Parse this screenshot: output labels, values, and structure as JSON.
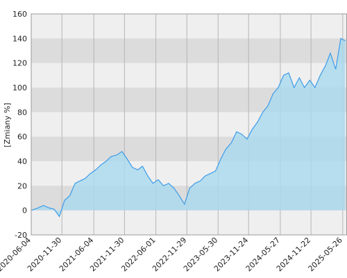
{
  "chart_data": {
    "type": "area",
    "y_label": "[Zmiany %]",
    "x": [
      "2020-06-04",
      "2020-07-15",
      "2020-08-15",
      "2020-09-15",
      "2020-10-15",
      "2020-11-15",
      "2020-12-15",
      "2021-01-15",
      "2021-02-15",
      "2021-03-15",
      "2021-04-15",
      "2021-05-15",
      "2021-06-15",
      "2021-07-15",
      "2021-08-15",
      "2021-09-15",
      "2021-10-15",
      "2021-11-15",
      "2021-12-15",
      "2022-01-15",
      "2022-02-15",
      "2022-03-15",
      "2022-04-15",
      "2022-05-15",
      "2022-06-15",
      "2022-07-15",
      "2022-08-15",
      "2022-09-15",
      "2022-10-15",
      "2022-11-15",
      "2022-12-15",
      "2023-01-15",
      "2023-02-15",
      "2023-03-15",
      "2023-04-15",
      "2023-05-15",
      "2023-06-15",
      "2023-07-15",
      "2023-08-15",
      "2023-09-15",
      "2023-10-15",
      "2023-11-15",
      "2023-12-15",
      "2024-01-15",
      "2024-02-15",
      "2024-03-15",
      "2024-04-15",
      "2024-05-15",
      "2024-06-15",
      "2024-07-15",
      "2024-08-15",
      "2024-09-15",
      "2024-10-15",
      "2024-11-15",
      "2024-12-15",
      "2025-01-15",
      "2025-02-15",
      "2025-03-15",
      "2025-04-15",
      "2025-05-15",
      "2025-06-10"
    ],
    "series": [
      {
        "name": "Zmiany",
        "color": "#3d9be9",
        "fill": "#a9d9ee",
        "values": [
          0,
          2,
          4,
          2,
          1,
          -5,
          8,
          12,
          22,
          24,
          26,
          30,
          33,
          37,
          40,
          44,
          45,
          48,
          42,
          35,
          33,
          36,
          28,
          22,
          25,
          20,
          22,
          18,
          12,
          5,
          18,
          22,
          24,
          28,
          30,
          32,
          42,
          50,
          55,
          64,
          62,
          58,
          66,
          72,
          80,
          85,
          95,
          100,
          110,
          112,
          100,
          108,
          100,
          106,
          100,
          110,
          118,
          128,
          115,
          140,
          138
        ]
      }
    ],
    "xlim": [
      "2020-06-04",
      "2025-06-20"
    ],
    "xticks": [
      "2020-06-04",
      "2020-11-30",
      "2021-06-04",
      "2021-11-30",
      "2022-06-01",
      "2022-11-29",
      "2023-05-30",
      "2023-11-24",
      "2024-05-27",
      "2024-11-22",
      "2025-05-26"
    ],
    "ylim": [
      -20,
      160
    ],
    "yticks": [
      -20,
      0,
      20,
      40,
      60,
      80,
      100,
      120,
      140,
      160
    ]
  }
}
